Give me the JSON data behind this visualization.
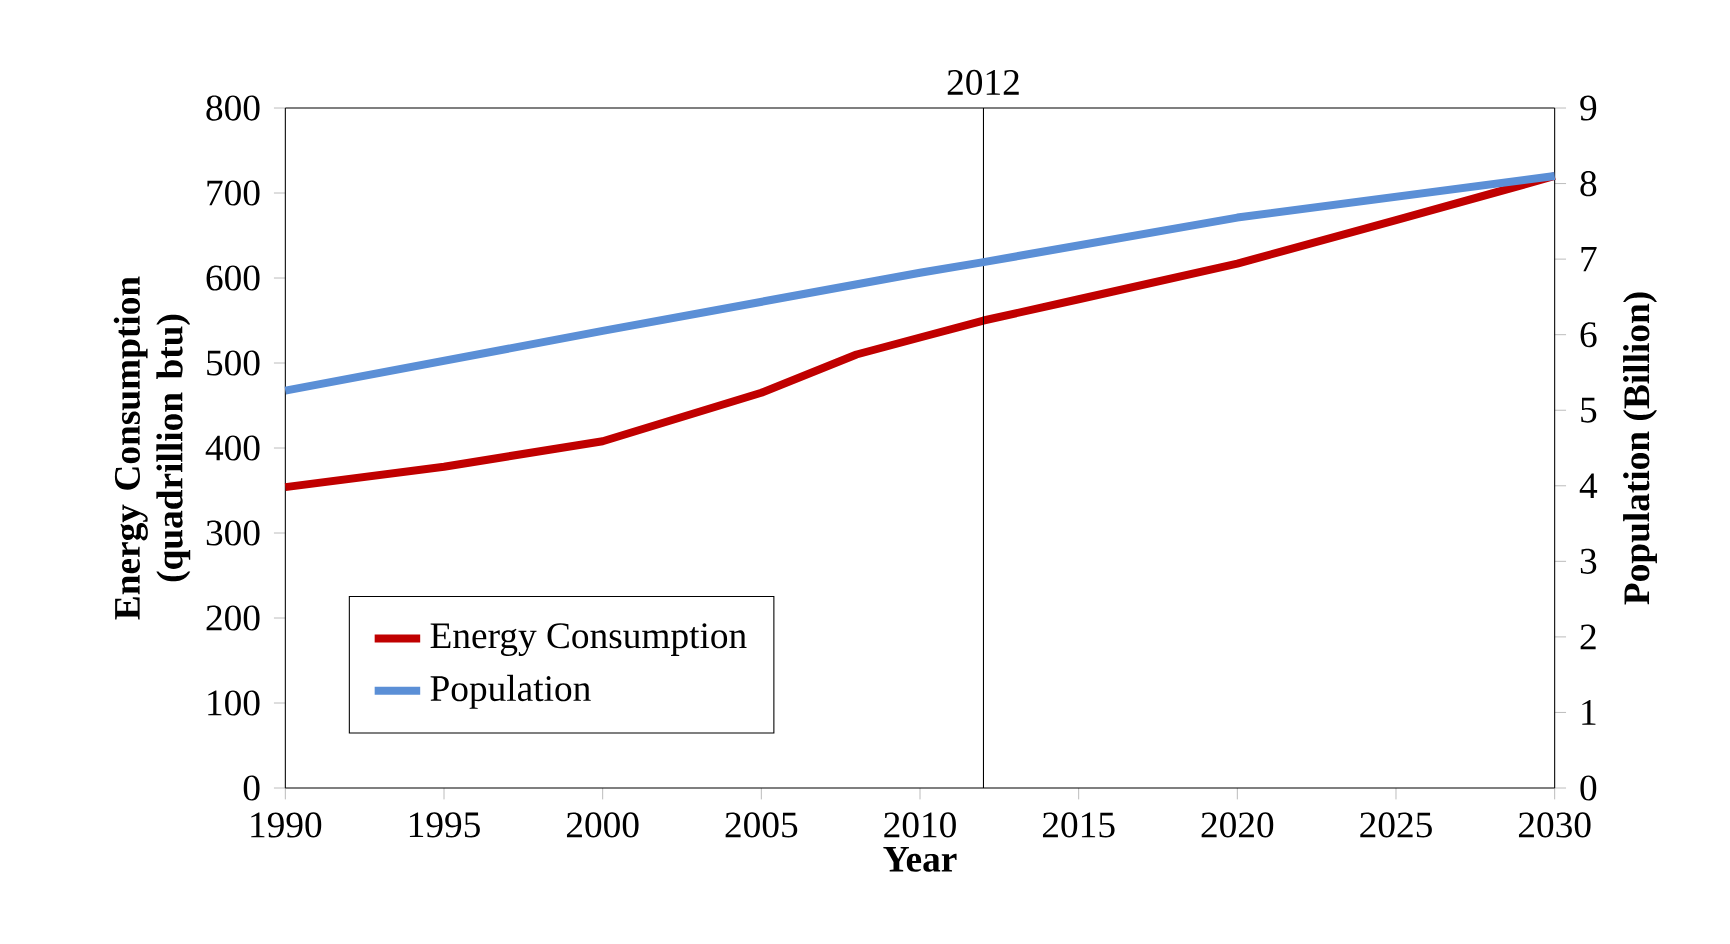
{
  "chart_data": {
    "type": "line",
    "xlabel": "Year",
    "ylabel": "Energy Consumption (quadrillion btu)",
    "y2label": "Population (Billion)",
    "series": [
      {
        "name": "Energy Consumption",
        "color": "#c00000",
        "x": [
          1990,
          1995,
          2000,
          2005,
          2008,
          2010,
          2012,
          2015,
          2020,
          2025,
          2030
        ],
        "values": [
          354,
          378,
          408,
          465,
          510,
          530,
          550,
          575,
          617,
          668,
          720
        ]
      },
      {
        "name": "Population",
        "color": "#5b8fd6",
        "axis": "y2",
        "x": [
          1990,
          2000,
          2010,
          2012,
          2020,
          2030
        ],
        "values": [
          5.26,
          6.05,
          6.82,
          6.96,
          7.55,
          8.1
        ]
      }
    ],
    "xlim": [
      1990,
      2030
    ],
    "xticks": [
      1990,
      1995,
      2000,
      2005,
      2010,
      2015,
      2020,
      2025,
      2030
    ],
    "ylim": [
      0,
      800
    ],
    "yticks": [
      0,
      100,
      200,
      300,
      400,
      500,
      600,
      700,
      800
    ],
    "y2lim": [
      0,
      9
    ],
    "y2ticks": [
      0,
      1,
      2,
      3,
      4,
      5,
      6,
      7,
      8,
      9
    ],
    "ref_lines": [
      {
        "axis": "x",
        "value": 2012,
        "label": "2012",
        "color": "#000000"
      }
    ],
    "legend": "left",
    "grid": false,
    "marker": "none",
    "line_style": "solid"
  }
}
